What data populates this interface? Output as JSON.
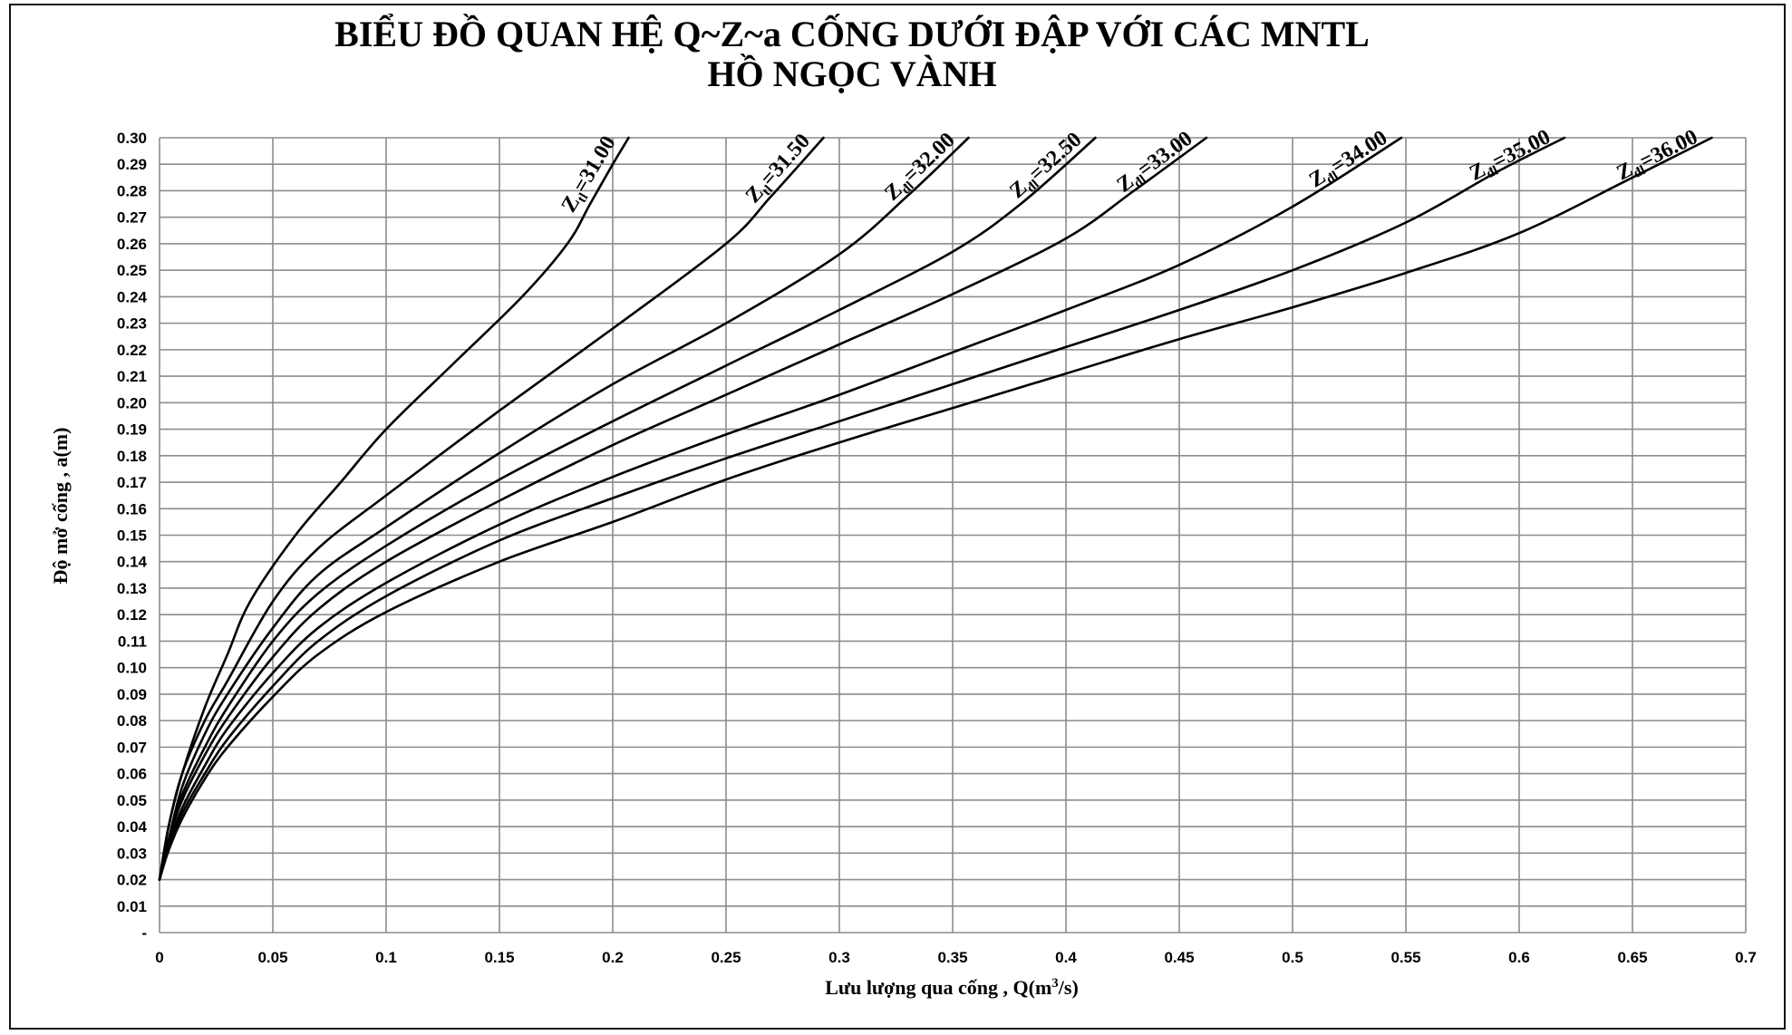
{
  "chart_data": {
    "type": "line",
    "title": "BIỂU ĐỒ QUAN HỆ Q~Z~a CỐNG DƯỚI ĐẬP VỚI CÁC MNTL",
    "subtitle": "HỒ NGỌC VÀNH",
    "xlabel": "Lưu lượng qua cống , Q(m",
    "xlabel_superscript": "3",
    "xlabel_suffix": "/s)",
    "ylabel": "Độ mở cống , a(m)",
    "xlim": [
      0,
      0.7
    ],
    "ylim": [
      0,
      0.3
    ],
    "grid": true,
    "x_ticks": [
      "0",
      "0.05",
      "0.1",
      "0.15",
      "0.2",
      "0.25",
      "0.3",
      "0.35",
      "0.4",
      "0.45",
      "0.5",
      "0.55",
      "0.6",
      "0.65",
      "0.7"
    ],
    "x_tick_values": [
      0,
      0.05,
      0.1,
      0.15,
      0.2,
      0.25,
      0.3,
      0.35,
      0.4,
      0.45,
      0.5,
      0.55,
      0.6,
      0.65,
      0.7
    ],
    "y_ticks": [
      "-",
      "0.01",
      "0.02",
      "0.03",
      "0.04",
      "0.05",
      "0.06",
      "0.07",
      "0.08",
      "0.09",
      "0.10",
      "0.11",
      "0.12",
      "0.13",
      "0.14",
      "0.15",
      "0.16",
      "0.17",
      "0.18",
      "0.19",
      "0.20",
      "0.21",
      "0.22",
      "0.23",
      "0.24",
      "0.25",
      "0.26",
      "0.27",
      "0.28",
      "0.29",
      "0.30"
    ],
    "y_tick_values": [
      0,
      0.01,
      0.02,
      0.03,
      0.04,
      0.05,
      0.06,
      0.07,
      0.08,
      0.09,
      0.1,
      0.11,
      0.12,
      0.13,
      0.14,
      0.15,
      0.16,
      0.17,
      0.18,
      0.19,
      0.2,
      0.21,
      0.22,
      0.23,
      0.24,
      0.25,
      0.26,
      0.27,
      0.28,
      0.29,
      0.3
    ],
    "series": [
      {
        "name": "Ztl=31.00",
        "label_main": "Z",
        "label_sub": "tl",
        "label_value": "=31.00",
        "x": [
          0,
          0.004,
          0.01,
          0.02,
          0.03,
          0.04,
          0.06,
          0.08,
          0.1,
          0.13,
          0.16,
          0.18,
          0.19,
          0.2,
          0.207
        ],
        "y": [
          0.02,
          0.04,
          0.06,
          0.085,
          0.105,
          0.125,
          0.15,
          0.17,
          0.19,
          0.215,
          0.24,
          0.26,
          0.275,
          0.29,
          0.3
        ]
      },
      {
        "name": "Ztl=31.50",
        "label_main": "Z",
        "label_sub": "tl",
        "label_value": "=31.50",
        "x": [
          0,
          0.004,
          0.01,
          0.02,
          0.03,
          0.05,
          0.07,
          0.1,
          0.15,
          0.2,
          0.25,
          0.27,
          0.293
        ],
        "y": [
          0.02,
          0.04,
          0.06,
          0.08,
          0.095,
          0.125,
          0.145,
          0.165,
          0.197,
          0.228,
          0.26,
          0.278,
          0.3
        ]
      },
      {
        "name": "Zđl=32.00",
        "label_main": "Z",
        "label_sub": "đl",
        "label_value": "=32.00",
        "x": [
          0,
          0.004,
          0.01,
          0.02,
          0.03,
          0.05,
          0.07,
          0.1,
          0.15,
          0.2,
          0.25,
          0.3,
          0.33,
          0.357
        ],
        "y": [
          0.02,
          0.035,
          0.055,
          0.075,
          0.09,
          0.115,
          0.135,
          0.153,
          0.181,
          0.207,
          0.23,
          0.256,
          0.278,
          0.3
        ]
      },
      {
        "name": "Zđl=32.50",
        "label_main": "Z",
        "label_sub": "đl",
        "label_value": "=32.50",
        "x": [
          0,
          0.004,
          0.01,
          0.02,
          0.03,
          0.05,
          0.07,
          0.1,
          0.15,
          0.2,
          0.25,
          0.3,
          0.35,
          0.38,
          0.413
        ],
        "y": [
          0.02,
          0.035,
          0.052,
          0.07,
          0.085,
          0.11,
          0.128,
          0.146,
          0.171,
          0.193,
          0.214,
          0.235,
          0.257,
          0.275,
          0.3
        ]
      },
      {
        "name": "Zđl=33.00",
        "label_main": "Z",
        "label_sub": "đl",
        "label_value": "=33.00",
        "x": [
          0,
          0.004,
          0.01,
          0.02,
          0.03,
          0.05,
          0.07,
          0.1,
          0.15,
          0.2,
          0.25,
          0.3,
          0.35,
          0.4,
          0.43,
          0.462
        ],
        "y": [
          0.02,
          0.035,
          0.05,
          0.067,
          0.081,
          0.104,
          0.122,
          0.14,
          0.163,
          0.184,
          0.203,
          0.222,
          0.241,
          0.262,
          0.28,
          0.3
        ]
      },
      {
        "name": "Zđl=34.00",
        "label_main": "Z",
        "label_sub": "đl",
        "label_value": "=34.00",
        "x": [
          0,
          0.004,
          0.01,
          0.02,
          0.03,
          0.05,
          0.07,
          0.1,
          0.15,
          0.2,
          0.25,
          0.3,
          0.35,
          0.4,
          0.45,
          0.5,
          0.548
        ],
        "y": [
          0.02,
          0.033,
          0.047,
          0.063,
          0.077,
          0.098,
          0.115,
          0.132,
          0.154,
          0.172,
          0.188,
          0.203,
          0.219,
          0.235,
          0.252,
          0.274,
          0.3
        ]
      },
      {
        "name": "Zđl=35.00",
        "label_main": "Z",
        "label_sub": "đl",
        "label_value": "=35.00",
        "x": [
          0,
          0.004,
          0.01,
          0.02,
          0.03,
          0.05,
          0.07,
          0.1,
          0.15,
          0.2,
          0.25,
          0.3,
          0.35,
          0.4,
          0.45,
          0.5,
          0.55,
          0.59,
          0.62
        ],
        "y": [
          0.02,
          0.032,
          0.045,
          0.06,
          0.073,
          0.093,
          0.11,
          0.127,
          0.148,
          0.164,
          0.179,
          0.193,
          0.207,
          0.221,
          0.235,
          0.25,
          0.268,
          0.287,
          0.3
        ]
      },
      {
        "name": "Zđl=36.00",
        "label_main": "Z",
        "label_sub": "đl",
        "label_value": "=36.00",
        "x": [
          0,
          0.004,
          0.01,
          0.02,
          0.03,
          0.05,
          0.07,
          0.1,
          0.15,
          0.2,
          0.25,
          0.3,
          0.35,
          0.4,
          0.45,
          0.5,
          0.55,
          0.6,
          0.65,
          0.685
        ],
        "y": [
          0.02,
          0.031,
          0.043,
          0.058,
          0.07,
          0.089,
          0.105,
          0.121,
          0.14,
          0.155,
          0.171,
          0.185,
          0.198,
          0.211,
          0.224,
          0.236,
          0.249,
          0.264,
          0.285,
          0.3
        ]
      }
    ]
  }
}
